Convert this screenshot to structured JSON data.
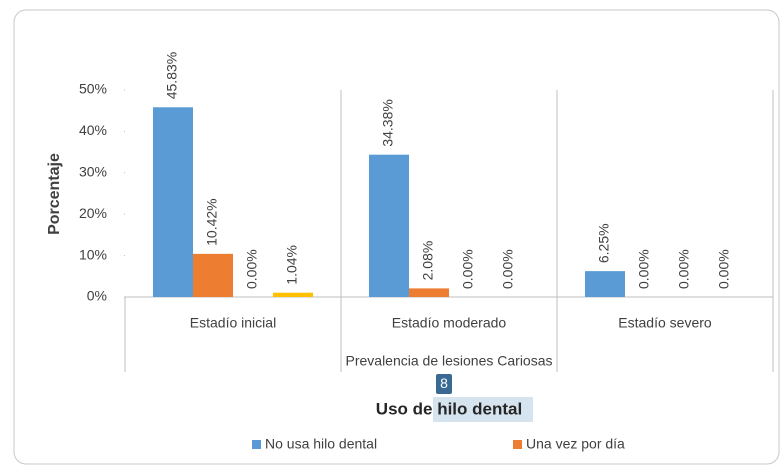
{
  "chart_data": {
    "type": "bar",
    "title": "Uso de hilo dental",
    "badge": "8",
    "y_label": "Porcentaje",
    "x_label": "Prevalencia de lesiones Cariosas",
    "categories": [
      "Estadío inicial",
      "Estadío moderado",
      "Estadío severo"
    ],
    "series": [
      {
        "name": "No usa hilo dental",
        "color": "#5b9bd5",
        "values": [
          45.83,
          34.38,
          6.25
        ],
        "value_labels": [
          "45.83%",
          "34.38%",
          "6.25%"
        ]
      },
      {
        "name": "Una vez por día",
        "color": "#ed7d31",
        "values": [
          10.42,
          2.08,
          0
        ],
        "value_labels": [
          "10.42%",
          "2.08%",
          "0.00%"
        ]
      },
      {
        "color": "#a5a5a5",
        "values": [
          0,
          0,
          0
        ],
        "value_labels": [
          "0.00%",
          "0.00%",
          "0.00%"
        ]
      },
      {
        "color": "#ffc000",
        "values": [
          1.04,
          0,
          0
        ],
        "value_labels": [
          "1.04%",
          "0.00%",
          "0.00%"
        ]
      }
    ],
    "ylim": [
      0,
      50
    ],
    "yticks": [
      {
        "value": 0,
        "label": "0%"
      },
      {
        "value": 10,
        "label": "10%"
      },
      {
        "value": 20,
        "label": "20%"
      },
      {
        "value": 30,
        "label": "30%"
      },
      {
        "value": 40,
        "label": "40%"
      },
      {
        "value": 50,
        "label": "50%"
      }
    ],
    "grid": false,
    "legend": "bottom"
  }
}
